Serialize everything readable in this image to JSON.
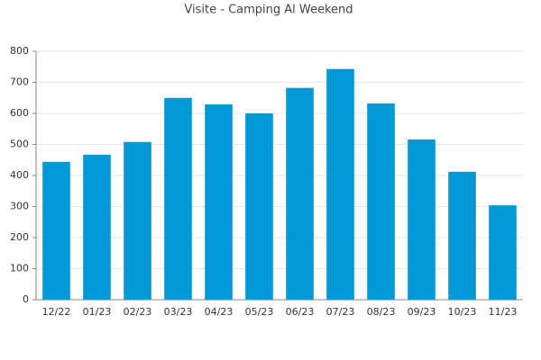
{
  "chart_data": {
    "type": "bar",
    "title": "Visite - Camping Al Weekend",
    "categories": [
      "12/22",
      "01/23",
      "02/23",
      "03/23",
      "04/23",
      "05/23",
      "06/23",
      "07/23",
      "08/23",
      "09/23",
      "10/23",
      "11/23"
    ],
    "values": [
      444,
      467,
      508,
      650,
      629,
      600,
      682,
      743,
      632,
      516,
      412,
      304
    ],
    "color": "#0099d6",
    "ylim": [
      0,
      800
    ],
    "yticks": [
      0,
      100,
      200,
      300,
      400,
      500,
      600,
      700,
      800
    ],
    "grid": true
  }
}
